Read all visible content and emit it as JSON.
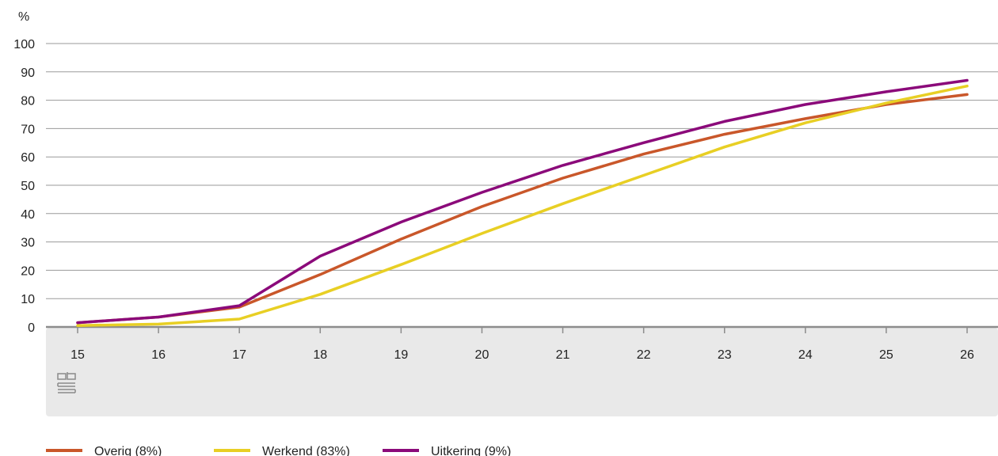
{
  "chart_data": {
    "type": "line",
    "unit_label": "%",
    "x": [
      15,
      16,
      17,
      18,
      19,
      20,
      21,
      22,
      23,
      24,
      25,
      26
    ],
    "ylim": [
      0,
      100
    ],
    "yticks": [
      0,
      10,
      20,
      30,
      40,
      50,
      60,
      70,
      80,
      90,
      100
    ],
    "grid": true,
    "legend_position": "bottom-left",
    "series": [
      {
        "name": "Overig (8%)",
        "color": "#c9572a",
        "values": [
          1.5,
          3.5,
          7,
          18.5,
          31,
          42.5,
          52.5,
          61,
          68,
          73.5,
          78.5,
          82
        ]
      },
      {
        "name": "Werkend (83%)",
        "color": "#e8cf24",
        "values": [
          0.5,
          1,
          2.8,
          11.5,
          22,
          33,
          43.5,
          53.5,
          63.5,
          72,
          79,
          85
        ]
      },
      {
        "name": "Uitkering (9%)",
        "color": "#8b0a7a",
        "values": [
          1.5,
          3.5,
          7.5,
          25,
          37,
          47.5,
          57,
          65,
          72.5,
          78.5,
          83,
          87
        ]
      }
    ]
  },
  "logo_text": "cbs"
}
